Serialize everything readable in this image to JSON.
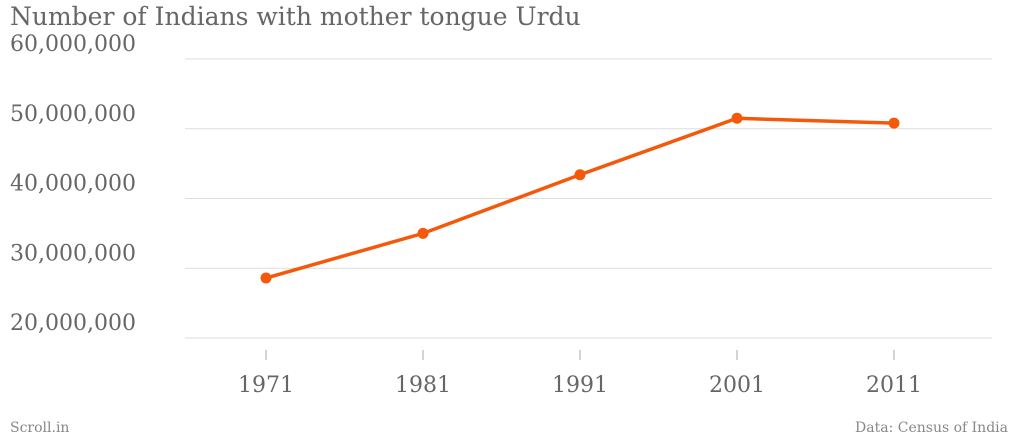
{
  "chart_data": {
    "type": "line",
    "title": "Number of Indians with mother tongue Urdu",
    "x": [
      "1971",
      "1981",
      "1991",
      "2001",
      "2011"
    ],
    "series": [
      {
        "values": [
          28600000,
          35000000,
          43400000,
          51500000,
          50800000
        ]
      }
    ],
    "ylim": [
      20000000,
      60000000
    ],
    "yticks": [
      {
        "value": 20000000,
        "label": "20,000,000"
      },
      {
        "value": 30000000,
        "label": "30,000,000"
      },
      {
        "value": 40000000,
        "label": "40,000,000"
      },
      {
        "value": 50000000,
        "label": "50,000,000"
      },
      {
        "value": 60000000,
        "label": "60,000,000"
      }
    ],
    "grid": true,
    "line_color": "#f4580a"
  },
  "footer": {
    "left": "Scroll.in",
    "right": "Data: Census of India"
  }
}
